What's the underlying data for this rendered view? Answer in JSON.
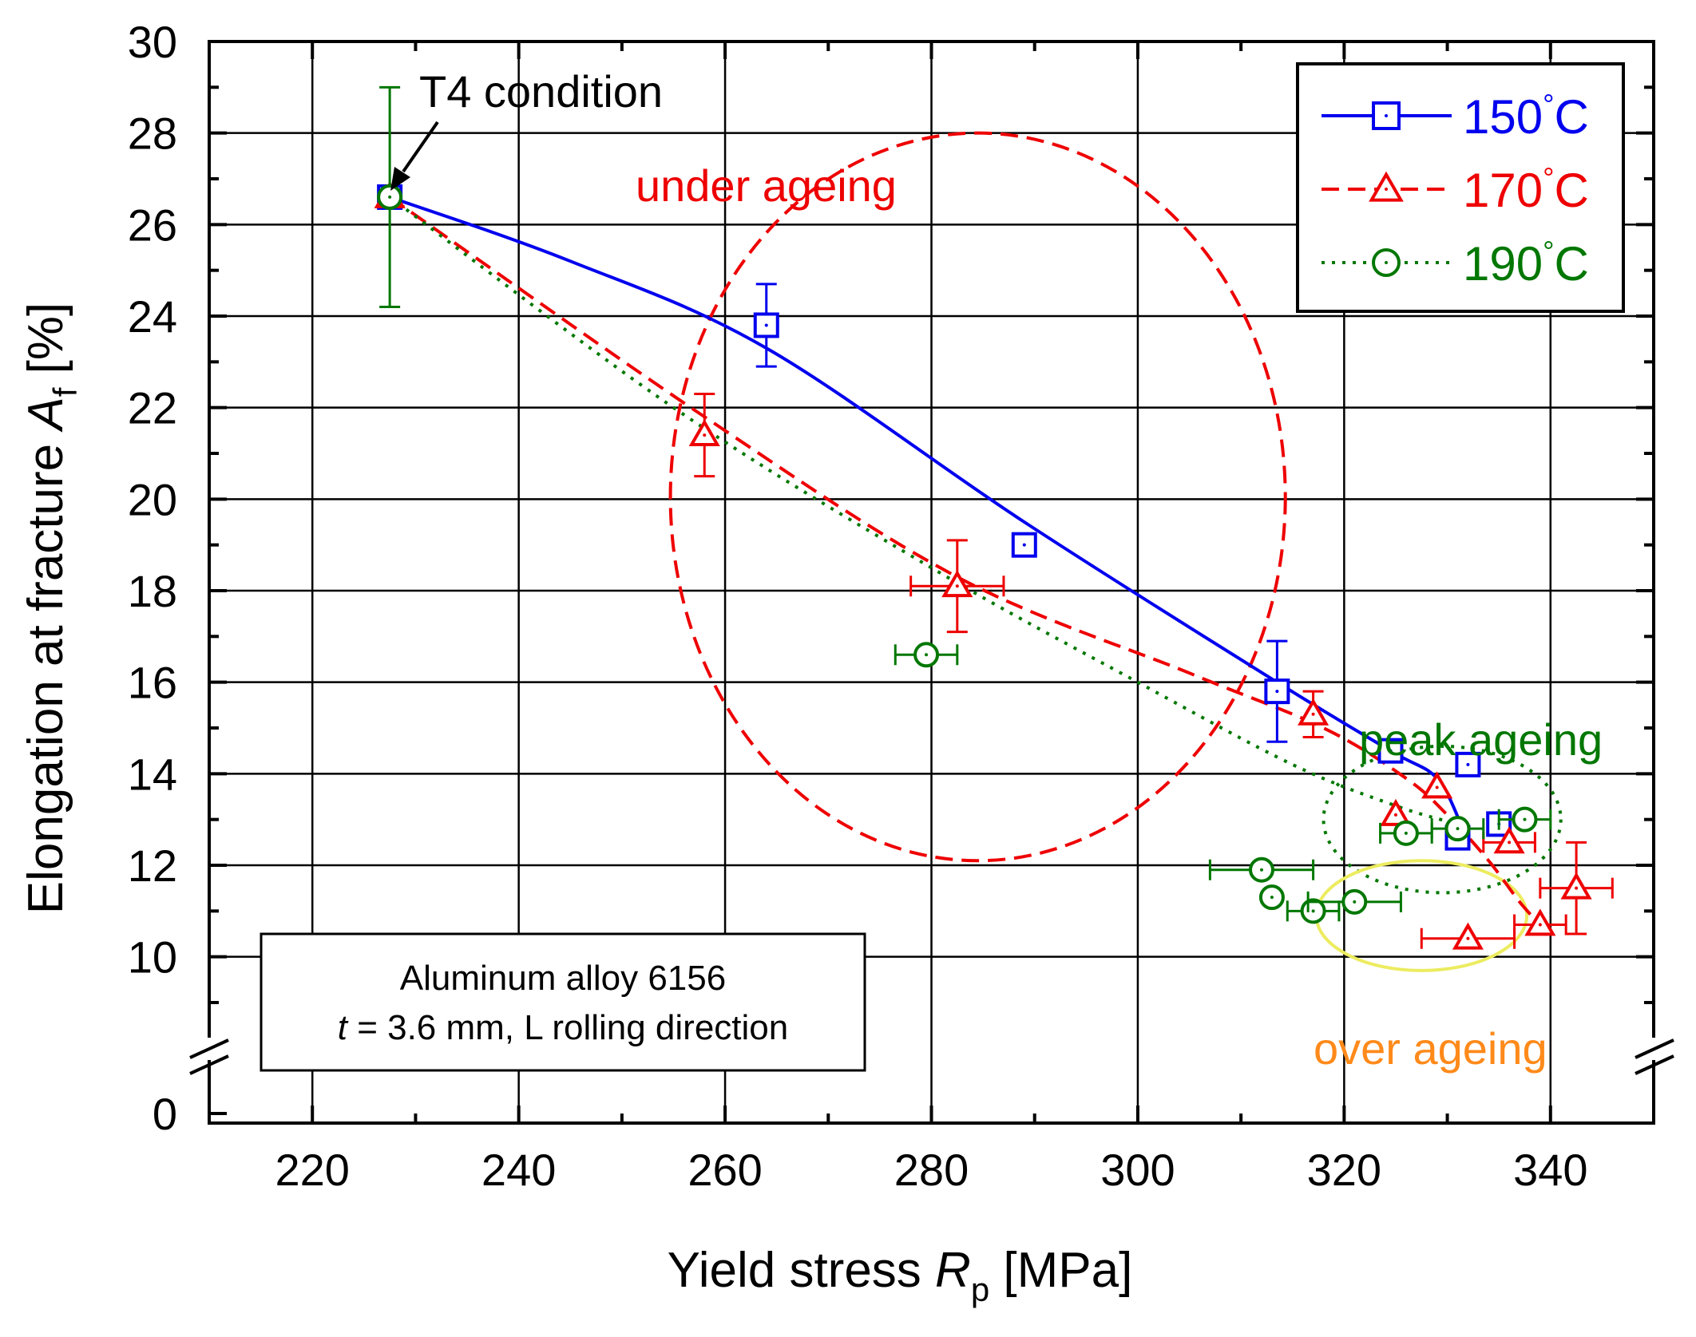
{
  "chart_data": {
    "type": "scatter",
    "xlabel": {
      "main": "Yield stress ",
      "italic": "R",
      "sub": "p",
      "unit": " [MPa]"
    },
    "ylabel": {
      "main": "Elongation at fracture ",
      "italic": "A",
      "sub": "f",
      "unit": " [%]"
    },
    "xlim": [
      210,
      350
    ],
    "ylim": [
      9,
      30
    ],
    "x_ticks": [
      220,
      240,
      260,
      280,
      300,
      320,
      340
    ],
    "y_ticks": [
      10,
      12,
      14,
      16,
      18,
      20,
      22,
      24,
      26,
      28,
      30
    ],
    "y_break_tick": "0",
    "grid": true,
    "legend_position": "top-right",
    "colors": {
      "s150": "#0000ee",
      "s170": "#ee0000",
      "s190": "#007700",
      "yellow": "#ecec60",
      "orange": "#ff8a1a"
    },
    "series": [
      {
        "name": "150°C",
        "temp": "150",
        "unit": "°C",
        "marker": "square",
        "line": "solid",
        "color": "#0000ee",
        "points": [
          {
            "x": 227.5,
            "y": 26.6
          },
          {
            "x": 264.0,
            "y": 23.8,
            "yerr": 0.9
          },
          {
            "x": 289.0,
            "y": 19.0
          },
          {
            "x": 313.5,
            "y": 15.8,
            "yerr": 1.1
          },
          {
            "x": 324.5,
            "y": 14.5
          },
          {
            "x": 332.0,
            "y": 14.2
          },
          {
            "x": 335.0,
            "y": 12.9
          },
          {
            "x": 331.0,
            "y": 12.6
          }
        ],
        "curve": [
          [
            227.5,
            26.6
          ],
          [
            245,
            25.2
          ],
          [
            264,
            23.3
          ],
          [
            289,
            19.5
          ],
          [
            313.5,
            16.0
          ],
          [
            324.5,
            14.5
          ],
          [
            329,
            13.9
          ],
          [
            331.5,
            12.8
          ]
        ]
      },
      {
        "name": "170°C",
        "temp": "170",
        "unit": "°C",
        "marker": "triangle",
        "line": "dashed",
        "color": "#ee0000",
        "points": [
          {
            "x": 227.5,
            "y": 26.6
          },
          {
            "x": 258.0,
            "y": 21.4,
            "yerr": 0.9
          },
          {
            "x": 282.5,
            "y": 18.1,
            "xerr": 4.5,
            "yerr": 1.0
          },
          {
            "x": 317.0,
            "y": 15.3,
            "yerr": 0.5
          },
          {
            "x": 325.0,
            "y": 13.1
          },
          {
            "x": 329.0,
            "y": 13.7
          },
          {
            "x": 336.0,
            "y": 12.5,
            "xerr": 2.5
          },
          {
            "x": 342.5,
            "y": 11.5,
            "xerr": 3.5,
            "yerr": 1.0
          },
          {
            "x": 339.0,
            "y": 10.7,
            "xerr": 2.5
          },
          {
            "x": 332.0,
            "y": 10.4,
            "xerr": 4.5
          }
        ],
        "curve": [
          [
            227.5,
            26.6
          ],
          [
            258,
            21.8
          ],
          [
            282.5,
            18.3
          ],
          [
            305,
            16.2
          ],
          [
            318,
            15.0
          ],
          [
            326,
            13.9
          ],
          [
            330,
            13.1
          ],
          [
            334,
            12.1
          ],
          [
            337,
            11.2
          ],
          [
            339,
            10.7
          ]
        ]
      },
      {
        "name": "190°C",
        "temp": "190",
        "unit": "°C",
        "marker": "circle",
        "line": "dotted",
        "color": "#007700",
        "points": [
          {
            "x": 227.5,
            "y": 26.6,
            "yerr": 2.4
          },
          {
            "x": 279.5,
            "y": 16.6,
            "xerr": 3.0
          },
          {
            "x": 312.0,
            "y": 11.9,
            "xerr": 5.0
          },
          {
            "x": 313.0,
            "y": 11.3
          },
          {
            "x": 317.0,
            "y": 11.0,
            "xerr": 2.5
          },
          {
            "x": 321.0,
            "y": 11.2,
            "xerr": 4.5
          },
          {
            "x": 326.0,
            "y": 12.7,
            "xerr": 2.5
          },
          {
            "x": 331.0,
            "y": 12.8,
            "xerr": 2.5
          },
          {
            "x": 337.5,
            "y": 13.0,
            "xerr": 2.5
          }
        ],
        "curve": [
          [
            227.5,
            26.6
          ],
          [
            255,
            22.0
          ],
          [
            280,
            18.5
          ],
          [
            300,
            16.0
          ],
          [
            315,
            14.2
          ],
          [
            325,
            13.3
          ],
          [
            331,
            12.9
          ]
        ]
      }
    ],
    "ellipses": [
      {
        "name": "under-ageing-ellipse",
        "cx": 284.5,
        "cy": 20.05,
        "rx": 29.8,
        "ry": 7.95,
        "color": "#ee0000",
        "dash": "dashed"
      },
      {
        "name": "peak-ageing-ellipse",
        "cx": 329.5,
        "cy": 13.0,
        "rx": 11.5,
        "ry": 1.6,
        "color": "#007700",
        "dash": "dotted"
      },
      {
        "name": "over-ageing-ellipse",
        "cx": 327.5,
        "cy": 10.9,
        "rx": 10.2,
        "ry": 1.2,
        "color": "#ecec60",
        "dash": "solid"
      }
    ],
    "annotations": {
      "t4": "T4 condition",
      "under": "under ageing",
      "peak": "peak ageing",
      "over": "over ageing",
      "info_line1": "Aluminum alloy 6156",
      "info_t_italic": "t",
      "info_line2_rest": " = 3.6 mm, L rolling direction"
    }
  }
}
